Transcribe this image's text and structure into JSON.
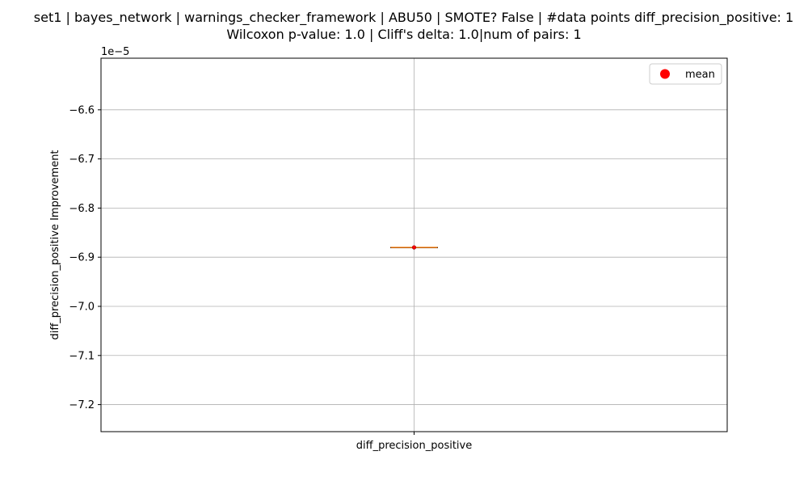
{
  "chart_data": {
    "type": "box",
    "title": "set1 | bayes_network | warnings_checker_framework | ABU50 | SMOTE? False | #data points diff_precision_positive: 1",
    "subtitle": "Wilcoxon p-value: 1.0 | Cliff's delta: 1.0|num of pairs: 1",
    "ylabel": "diff_precision_positive Improvement",
    "offset_label": "1e−5",
    "categories": [
      "diff_precision_positive"
    ],
    "ylim": [
      -7.255,
      -6.495
    ],
    "yticks": [
      -6.6,
      -6.7,
      -6.8,
      -6.9,
      -7.0,
      -7.1,
      -7.2
    ],
    "ytick_labels": [
      "−6.6",
      "−6.7",
      "−6.8",
      "−6.9",
      "−7.0",
      "−7.1",
      "−7.2"
    ],
    "series": [
      {
        "values": [
          -6.88
        ],
        "median": -6.88,
        "q1": -6.88,
        "q3": -6.88,
        "whisker_low": -6.88,
        "whisker_high": -6.88,
        "mean": -6.88
      }
    ],
    "legend": {
      "label": "mean",
      "position": "top-right"
    },
    "grid": true,
    "colors": {
      "box": "#000000",
      "median": "#ff7f0e",
      "mean": "#ff0000",
      "grid": "#b0b0b0"
    }
  }
}
